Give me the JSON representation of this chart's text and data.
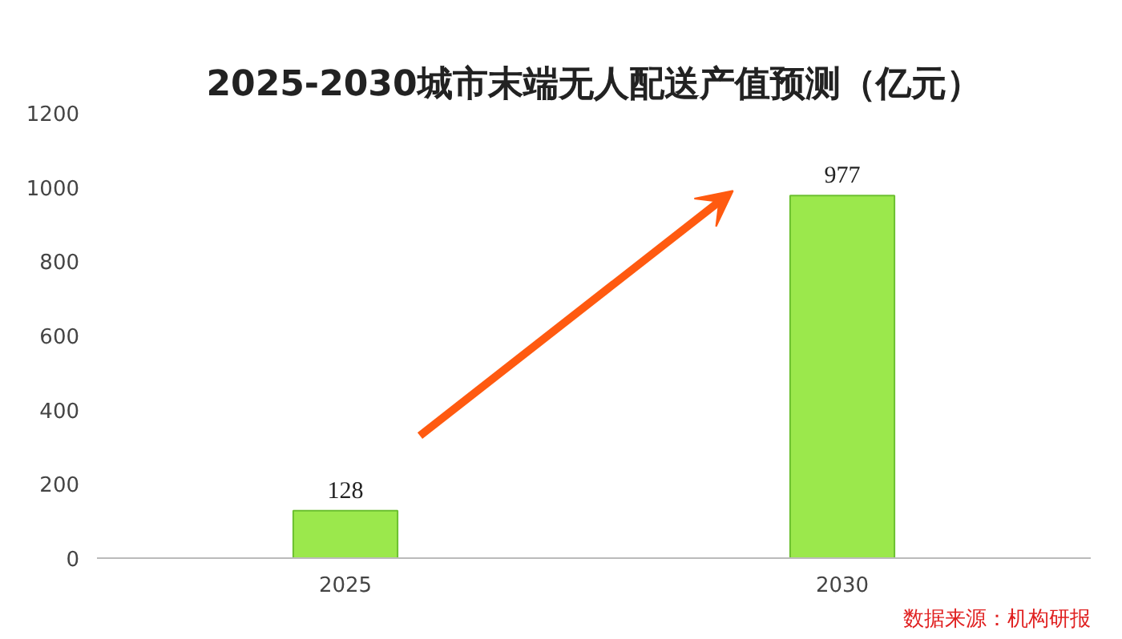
{
  "chart_data": {
    "type": "bar",
    "title": "2025-2030城市末端无人配送产值预测（亿元）",
    "categories": [
      "2025",
      "2030"
    ],
    "values": [
      128,
      977
    ],
    "color": "#9be84c",
    "ylim": [
      0,
      1200
    ],
    "yticks": [
      0,
      200,
      400,
      600,
      800,
      1000,
      1200
    ],
    "grid": false,
    "data_labels": true,
    "annotations": [
      "数据来源：机构研报"
    ]
  }
}
